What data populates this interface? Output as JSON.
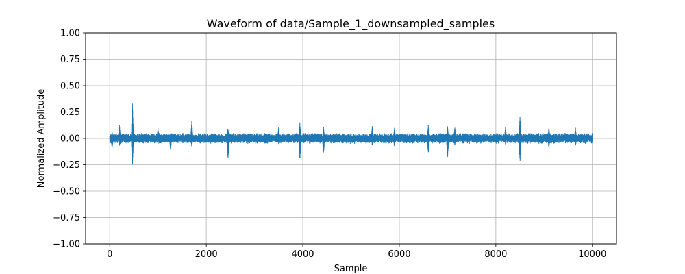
{
  "chart_data": {
    "type": "line",
    "title": "Waveform of data/Sample_1_downsampled_samples",
    "xlabel": "Sample",
    "ylabel": "Normalized Amplitude",
    "xlim": [
      -500,
      10500
    ],
    "ylim": [
      -1.0,
      1.0
    ],
    "xticks": [
      0,
      2000,
      4000,
      6000,
      8000,
      10000
    ],
    "xtick_labels": [
      "0",
      "2000",
      "4000",
      "6000",
      "8000",
      "10000"
    ],
    "yticks": [
      -1.0,
      -0.75,
      -0.5,
      -0.25,
      0.0,
      0.25,
      0.5,
      0.75,
      1.0
    ],
    "ytick_labels": [
      "−1.00",
      "−0.75",
      "−0.50",
      "−0.25",
      "0.00",
      "0.25",
      "0.50",
      "0.75",
      "1.00"
    ],
    "grid": true,
    "line_color": "#1f77b4",
    "grid_color": "#b0b0b0",
    "series": [
      {
        "x_start": 0,
        "x_end": 10000,
        "baseline_amplitude": 0.05,
        "peaks": [
          {
            "x": 50,
            "max": 0.06,
            "min": -0.1
          },
          {
            "x": 200,
            "max": 0.14,
            "min": -0.08
          },
          {
            "x": 470,
            "max": 0.35,
            "min": -0.28
          },
          {
            "x": 1000,
            "max": 0.1,
            "min": -0.06
          },
          {
            "x": 1260,
            "max": 0.05,
            "min": -0.12
          },
          {
            "x": 1700,
            "max": 0.17,
            "min": -0.08
          },
          {
            "x": 2450,
            "max": 0.1,
            "min": -0.22
          },
          {
            "x": 3500,
            "max": 0.12,
            "min": -0.06
          },
          {
            "x": 3940,
            "max": 0.15,
            "min": -0.23
          },
          {
            "x": 4430,
            "max": 0.11,
            "min": -0.16
          },
          {
            "x": 5440,
            "max": 0.12,
            "min": -0.07
          },
          {
            "x": 5900,
            "max": 0.1,
            "min": -0.08
          },
          {
            "x": 6600,
            "max": 0.13,
            "min": -0.15
          },
          {
            "x": 7000,
            "max": 0.12,
            "min": -0.2
          },
          {
            "x": 7150,
            "max": 0.11,
            "min": -0.07
          },
          {
            "x": 8200,
            "max": 0.11,
            "min": -0.06
          },
          {
            "x": 8500,
            "max": 0.22,
            "min": -0.24
          },
          {
            "x": 9100,
            "max": 0.11,
            "min": -0.1
          },
          {
            "x": 9650,
            "max": 0.1,
            "min": -0.08
          }
        ]
      }
    ]
  }
}
